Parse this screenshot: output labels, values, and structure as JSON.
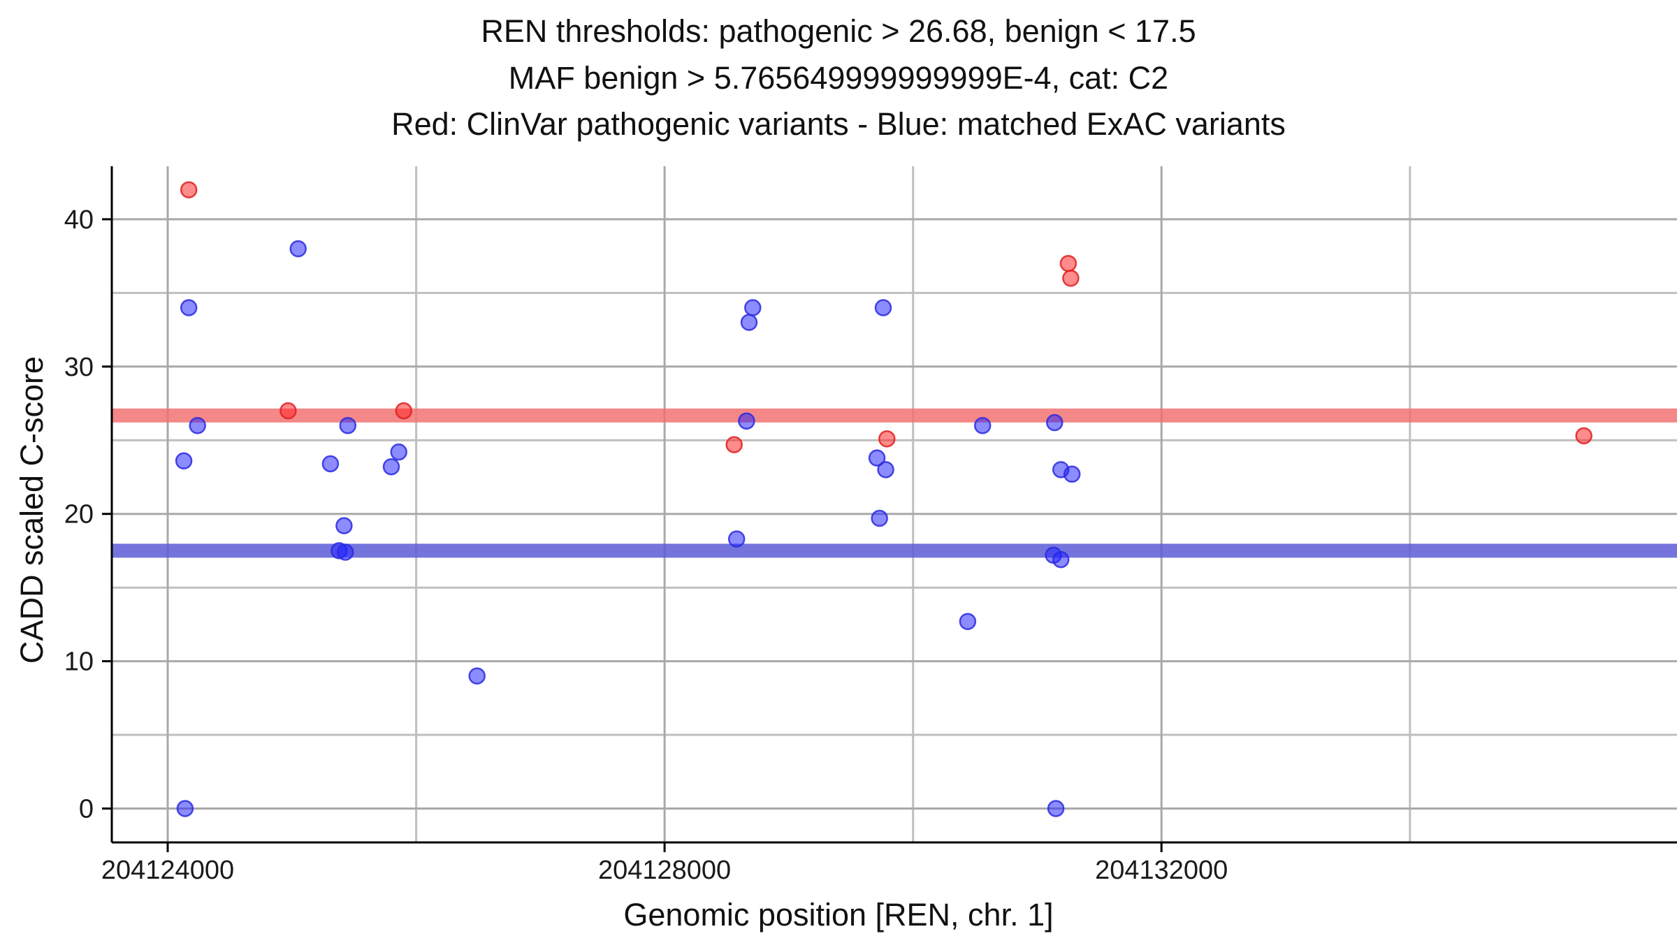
{
  "title": {
    "line1": "REN thresholds: pathogenic > 26.68, benign < 17.5",
    "line2": "MAF benign > 5.765649999999999E-4, cat: C2",
    "line3": "Red: ClinVar pathogenic variants - Blue: matched ExAC variants"
  },
  "chart_data": {
    "type": "scatter",
    "gene": "REN",
    "chromosome": "chr. 1",
    "xlabel": "Genomic position [REN, chr. 1]",
    "ylabel": "CADD scaled C-score",
    "xlim": [
      204123550,
      204136150
    ],
    "ylim": [
      -2.3,
      43.6
    ],
    "x_ticks": [
      {
        "value": 204124000,
        "label": "204124000"
      },
      {
        "value": 204128000,
        "label": "204128000"
      },
      {
        "value": 204132000,
        "label": "204132000"
      }
    ],
    "x_minor_gridlines": [
      204126000,
      204130000,
      204134000
    ],
    "y_ticks": [
      {
        "value": 0,
        "label": "0"
      },
      {
        "value": 10,
        "label": "10"
      },
      {
        "value": 20,
        "label": "20"
      },
      {
        "value": 30,
        "label": "30"
      },
      {
        "value": 40,
        "label": "40"
      }
    ],
    "y_minor_gridlines": [
      5,
      15,
      25,
      35
    ],
    "grid": {
      "major_color": "#a9a9a9",
      "minor_color": "#bfbfbf"
    },
    "thresholds": {
      "pathogenic_gt": 26.68,
      "benign_lt": 17.5,
      "maf_benign_gt": "5.765649999999999E-4",
      "category": "C2"
    },
    "bands": [
      {
        "name": "pathogenic-threshold-band",
        "y": 26.68,
        "color": "#f26d6d",
        "opacity": 0.82,
        "thickness": 20
      },
      {
        "name": "benign-threshold-band",
        "y": 17.5,
        "color": "#5c5cd6",
        "opacity": 0.85,
        "thickness": 20
      }
    ],
    "series": [
      {
        "name": "matched ExAC variants",
        "color": "#2222ff",
        "stroke": "#2a2ae0",
        "points": [
          [
            204125050,
            38
          ],
          [
            204124170,
            34
          ],
          [
            204128710,
            34
          ],
          [
            204128680,
            33
          ],
          [
            204129760,
            34
          ],
          [
            204124240,
            26
          ],
          [
            204125450,
            26
          ],
          [
            204128660,
            26.3
          ],
          [
            204130560,
            26
          ],
          [
            204131140,
            26.2
          ],
          [
            204124130,
            23.6
          ],
          [
            204125310,
            23.4
          ],
          [
            204125860,
            24.2
          ],
          [
            204125800,
            23.2
          ],
          [
            204129710,
            23.8
          ],
          [
            204129780,
            23
          ],
          [
            204131190,
            23
          ],
          [
            204131280,
            22.7
          ],
          [
            204125420,
            19.2
          ],
          [
            204129730,
            19.7
          ],
          [
            204125380,
            17.5
          ],
          [
            204125430,
            17.4
          ],
          [
            204128580,
            18.3
          ],
          [
            204131130,
            17.2
          ],
          [
            204131190,
            16.9
          ],
          [
            204130440,
            12.7
          ],
          [
            204126490,
            9
          ],
          [
            204124140,
            0
          ],
          [
            204131150,
            0
          ]
        ]
      },
      {
        "name": "ClinVar pathogenic variants",
        "color": "#ff2222",
        "stroke": "#e01f1f",
        "points": [
          [
            204124170,
            42
          ],
          [
            204131250,
            37
          ],
          [
            204131270,
            36
          ],
          [
            204124970,
            27
          ],
          [
            204125900,
            27
          ],
          [
            204128560,
            24.7
          ],
          [
            204129790,
            25.1
          ],
          [
            204135400,
            25.3
          ]
        ]
      }
    ],
    "legend": {
      "position": "none"
    }
  }
}
